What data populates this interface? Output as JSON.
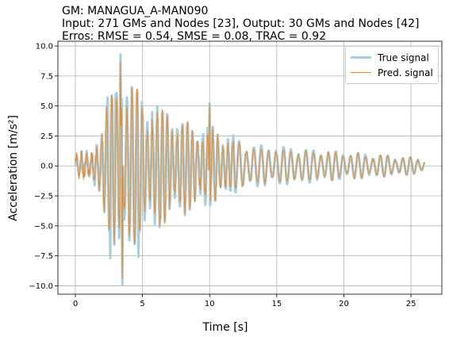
{
  "chart_data": {
    "type": "line",
    "title_lines": [
      "GM: MANAGUA_A-MAN090",
      "Input: 271 GMs and Nodes [23], Output: 30 GMs and Nodes [42]",
      "Erros: RMSE = 0.54, SMSE = 0.08, TRAC = 0.92"
    ],
    "xlabel": "Time [s]",
    "ylabel": "Acceleration [m/s²]",
    "xlim": [
      -1.3,
      27.3
    ],
    "ylim": [
      -10.7,
      10.4
    ],
    "xticks": [
      "0",
      "5",
      "10",
      "15",
      "20",
      "25"
    ],
    "yticks": [
      "10.0",
      "7.5",
      "5.0",
      "2.5",
      "0.0",
      "−2.5",
      "−5.0",
      "−7.5",
      "−10.0"
    ],
    "grid": true,
    "legend_position": "top-right",
    "series": [
      {
        "name": "True signal",
        "color": "#a6cee3"
      },
      {
        "name": "Pred. signal",
        "color": "#f08a24"
      }
    ],
    "duration_s": 26,
    "peaks": {
      "max_true": 9.3,
      "min_true": -9.9,
      "max_pred": 8.7,
      "min_pred": -9.4
    }
  }
}
